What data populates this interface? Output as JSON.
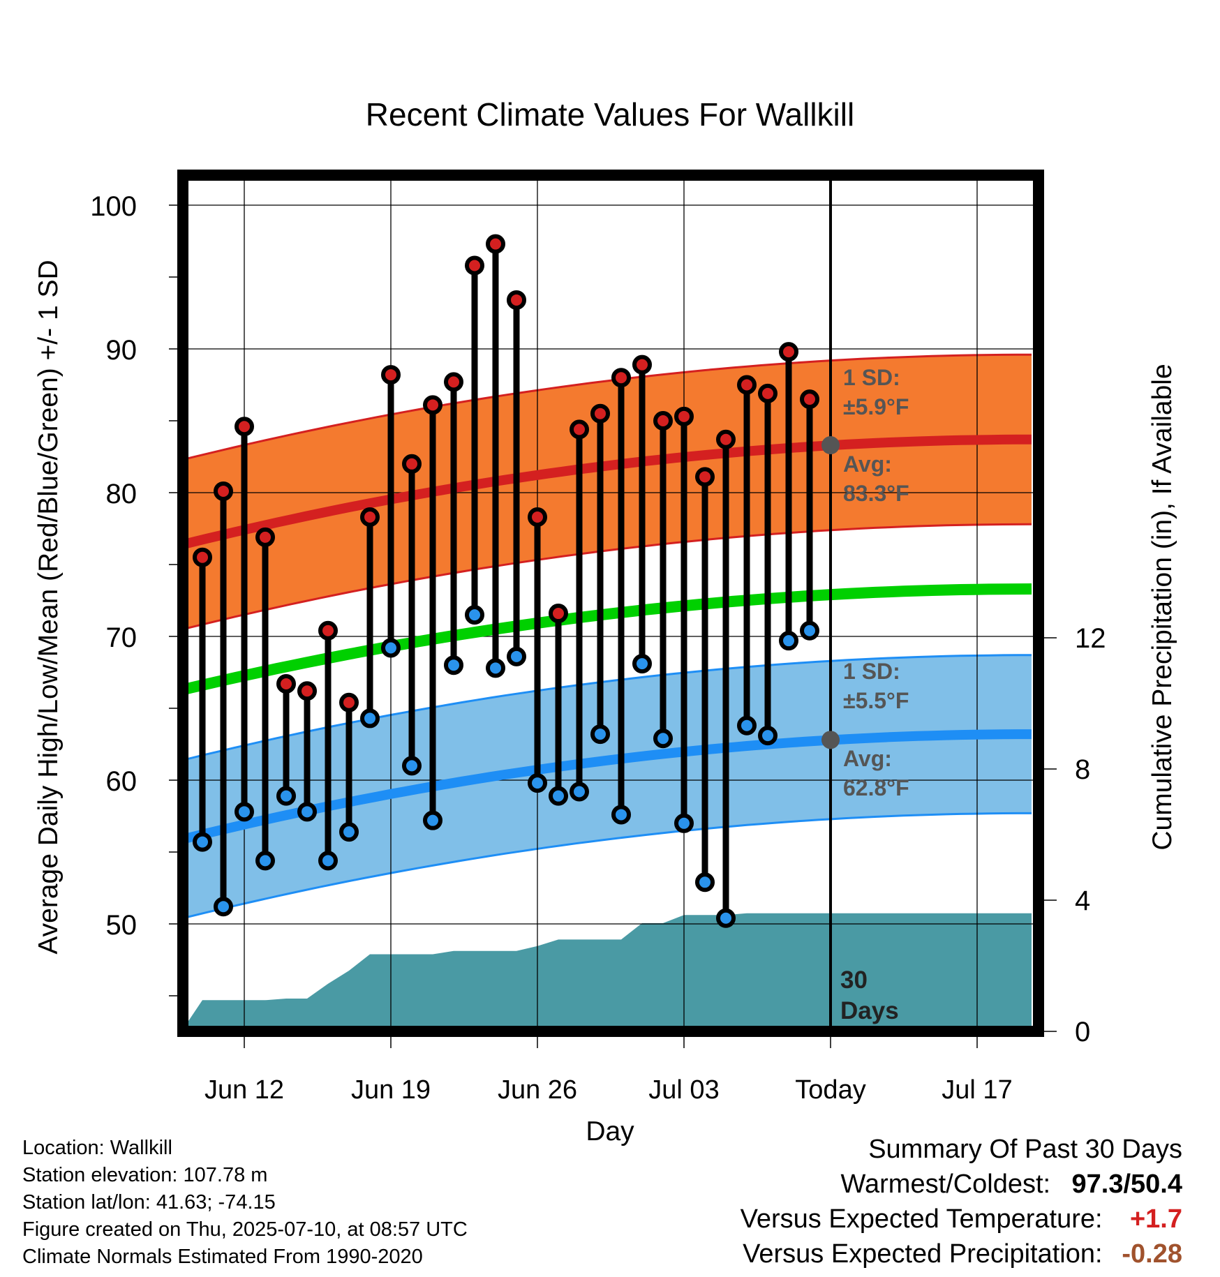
{
  "chart_data": {
    "type": "line",
    "title": "Recent Climate Values For Wallkill",
    "xlabel": "Day",
    "ylabel": "Average Daily High/Low/Mean (Red/Blue/Green) +/- 1 SD",
    "y2label": "Cumulative Precipitation (in), If Available",
    "x_tick_labels": [
      "Jun 12",
      "Jun 19",
      "Jun 26",
      "Jul 03",
      "Today",
      "Jul 17"
    ],
    "x_tick_days": [
      12,
      19,
      26,
      33,
      40,
      47
    ],
    "x_range_days": [
      8.8,
      49.6
    ],
    "ylim": [
      41.5,
      104
    ],
    "y_ticks": [
      50,
      60,
      70,
      80,
      90,
      100
    ],
    "y2_ticks": [
      0,
      4,
      8,
      12
    ],
    "today_day": 40,
    "today_label": "30 Days",
    "days": [
      10,
      11,
      12,
      13,
      14,
      15,
      16,
      17,
      18,
      19,
      20,
      21,
      22,
      23,
      24,
      25,
      26,
      27,
      28,
      29,
      30,
      31,
      32,
      33,
      34,
      35,
      36,
      37,
      38,
      39
    ],
    "daily_high": [
      75.5,
      80.1,
      84.6,
      76.9,
      66.7,
      66.2,
      70.4,
      65.4,
      78.3,
      88.2,
      82.0,
      86.1,
      87.7,
      95.8,
      97.3,
      93.4,
      78.3,
      71.6,
      84.4,
      85.5,
      88.0,
      88.9,
      85.0,
      85.3,
      81.1,
      83.7,
      87.5,
      86.9,
      89.8,
      86.5
    ],
    "daily_low": [
      55.7,
      51.2,
      57.8,
      54.4,
      58.9,
      57.8,
      54.4,
      56.4,
      64.3,
      69.2,
      61.0,
      57.2,
      68.0,
      71.5,
      67.8,
      68.6,
      59.8,
      58.9,
      59.2,
      63.2,
      57.6,
      68.1,
      62.9,
      57.0,
      52.9,
      50.4,
      63.8,
      63.1,
      69.7,
      70.4
    ],
    "normal_high": {
      "start": 76.3,
      "end": 83.7,
      "today": 83.3,
      "sd": 5.9
    },
    "normal_low": {
      "start": 55.8,
      "end": 63.2,
      "today": 62.8,
      "sd": 5.5
    },
    "normal_mean": {
      "start": 66.2,
      "end": 73.3
    },
    "cumulative_precip": {
      "days": [
        9,
        10,
        11,
        12,
        13,
        14,
        15,
        16,
        17,
        18,
        19,
        20,
        21,
        22,
        23,
        24,
        25,
        26,
        27,
        28,
        29,
        30,
        31,
        32,
        33,
        34,
        35,
        36,
        37,
        38,
        39,
        49.6
      ],
      "values": [
        0.0,
        0.95,
        0.95,
        0.95,
        0.95,
        1.0,
        1.0,
        1.45,
        1.85,
        2.35,
        2.35,
        2.35,
        2.35,
        2.45,
        2.45,
        2.45,
        2.45,
        2.6,
        2.8,
        2.8,
        2.8,
        2.8,
        3.3,
        3.3,
        3.55,
        3.55,
        3.55,
        3.6,
        3.6,
        3.6,
        3.6,
        3.6
      ]
    },
    "precip_ylim": [
      0,
      14.4
    ],
    "annotations": {
      "high_sd_label": "1 SD:",
      "high_sd_value": "±5.9°F",
      "high_avg_label": "Avg:",
      "high_avg_value": "83.3°F",
      "low_sd_label": "1 SD:",
      "low_sd_value": "±5.5°F",
      "low_avg_label": "Avg:",
      "low_avg_value": "62.8°F"
    },
    "colors": {
      "high_band": "#f47a2f",
      "high_line": "#d42020",
      "low_band": "#80bfe8",
      "low_line": "#1e8ef5",
      "mean_line": "#00d000",
      "precip": "#4a9aa4",
      "high_marker": "#d42020",
      "low_marker": "#2a93ec",
      "avg_dot": "#555555"
    },
    "grid": true
  },
  "info": {
    "location": "Location: Wallkill",
    "elevation": "Station elevation: 107.78 m",
    "latlon": "Station lat/lon: 41.63; -74.15",
    "created": "Figure created on Thu, 2025-07-10, at 08:57 UTC",
    "normals": "Climate Normals Estimated From 1990-2020"
  },
  "summary": {
    "heading": "Summary Of Past 30 Days",
    "warmest_label": "Warmest/Coldest:",
    "warmest_value": "97.3/50.4",
    "temp_label": "Versus Expected Temperature:",
    "temp_value": "+1.7",
    "temp_color": "#d42020",
    "precip_label": "Versus Expected Precipitation:",
    "precip_value": "-0.28",
    "precip_color": "#a0522d"
  }
}
